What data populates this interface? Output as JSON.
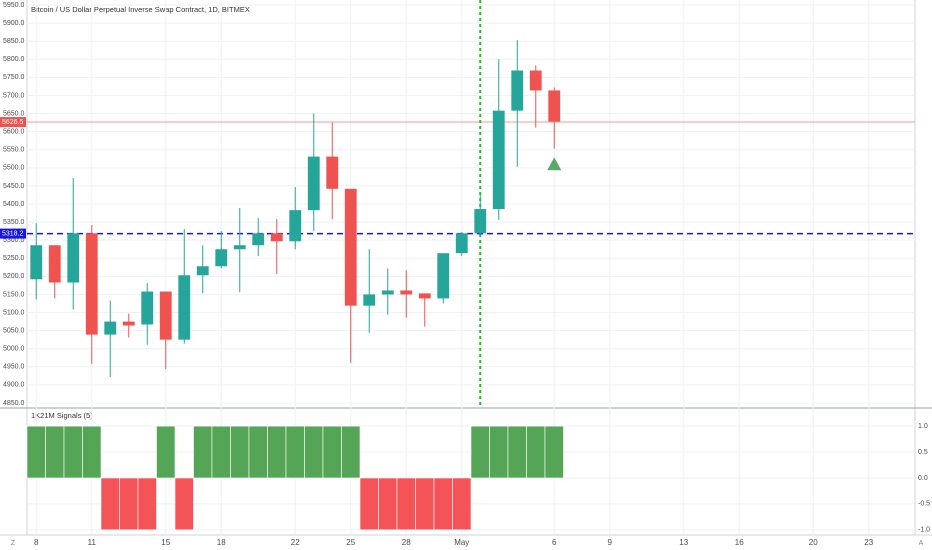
{
  "chart_data": [
    {
      "type": "candlestick",
      "title": "Bitcoin / US Dollar Perpetual Inverse Swap Contract, 1D, BITMEX",
      "open": [
        5192,
        5286,
        5183,
        5319,
        5039,
        5075,
        5067,
        5158,
        5025,
        5203,
        5228,
        5275,
        5286,
        5319,
        5297,
        5383,
        5531,
        5442,
        5119,
        5150,
        5161,
        5153,
        5139,
        5264,
        5319,
        5386,
        5658,
        5769,
        5714
      ],
      "high": [
        5347,
        5286,
        5472,
        5342,
        5133,
        5097,
        5181,
        5158,
        5331,
        5286,
        5325,
        5389,
        5361,
        5358,
        5447,
        5650,
        5625,
        5442,
        5275,
        5222,
        5217,
        5153,
        5264,
        5322,
        5425,
        5800,
        5853,
        5783,
        5722
      ],
      "low": [
        5136,
        5139,
        5108,
        4958,
        4922,
        5031,
        5011,
        4944,
        5014,
        5153,
        5222,
        5156,
        5256,
        5206,
        5275,
        5325,
        5358,
        4961,
        5044,
        5094,
        5086,
        5061,
        5125,
        5256,
        5308,
        5356,
        5503,
        5611,
        5553
      ],
      "close": [
        5286,
        5183,
        5319,
        5039,
        5075,
        5064,
        5158,
        5025,
        5203,
        5228,
        5275,
        5286,
        5319,
        5297,
        5383,
        5531,
        5442,
        5119,
        5150,
        5161,
        5150,
        5139,
        5264,
        5319,
        5386,
        5658,
        5769,
        5714,
        5628
      ],
      "up_color": "#26a69a",
      "down_color": "#ef5350",
      "xlim": [
        -0.5,
        47.5
      ],
      "xticks": [
        {
          "value": 0,
          "label": "8"
        },
        {
          "value": 3,
          "label": "11"
        },
        {
          "value": 7,
          "label": "15"
        },
        {
          "value": 10,
          "label": "18"
        },
        {
          "value": 14,
          "label": "22"
        },
        {
          "value": 17,
          "label": "25"
        },
        {
          "value": 20,
          "label": "28"
        },
        {
          "value": 23,
          "label": "May"
        },
        {
          "value": 28,
          "label": "6"
        },
        {
          "value": 31,
          "label": "9"
        },
        {
          "value": 35,
          "label": "13"
        },
        {
          "value": 38,
          "label": "16"
        },
        {
          "value": 42,
          "label": "20"
        },
        {
          "value": 45,
          "label": "23"
        }
      ],
      "ylim": [
        4836.1,
        5963.9
      ],
      "yticks": [
        {
          "value": 4850,
          "label": "4850.0"
        },
        {
          "value": 4900,
          "label": "4900.0"
        },
        {
          "value": 4950,
          "label": "4950.0"
        },
        {
          "value": 5000,
          "label": "5000.0"
        },
        {
          "value": 5050,
          "label": "5050.0"
        },
        {
          "value": 5100,
          "label": "5100.0"
        },
        {
          "value": 5150,
          "label": "5150.0"
        },
        {
          "value": 5200,
          "label": "5200.0"
        },
        {
          "value": 5250,
          "label": "5250.0"
        },
        {
          "value": 5300,
          "label": "5300.0"
        },
        {
          "value": 5350,
          "label": "5350.0"
        },
        {
          "value": 5400,
          "label": "5400.0"
        },
        {
          "value": 5450,
          "label": "5450.0"
        },
        {
          "value": 5500,
          "label": "5500.0"
        },
        {
          "value": 5550,
          "label": "5550.0"
        },
        {
          "value": 5600,
          "label": "5600.0"
        },
        {
          "value": 5650,
          "label": "5650.0"
        },
        {
          "value": 5700,
          "label": "5700.0"
        },
        {
          "value": 5750,
          "label": "5750.0"
        },
        {
          "value": 5800,
          "label": "5800.0"
        },
        {
          "value": 5850,
          "label": "5850.0"
        },
        {
          "value": 5900,
          "label": "5900.0"
        },
        {
          "value": 5950,
          "label": "5950.0"
        }
      ],
      "last_price": {
        "value": 5626.5,
        "color": "#ef5350"
      },
      "level_line": {
        "value": 5318.2,
        "color": "#1515e6"
      },
      "vline": {
        "x": 24,
        "color": "#1fbf1f"
      },
      "markers": [
        {
          "x": 28,
          "value": 5510,
          "color": "#5aa86a"
        }
      ],
      "grid": true
    },
    {
      "type": "bar",
      "title": "1K21M Signals (5)",
      "values": [
        1,
        1,
        1,
        1,
        -1,
        -1,
        -1,
        1,
        -1,
        1,
        1,
        1,
        1,
        1,
        1,
        1,
        1,
        1,
        -1,
        -1,
        -1,
        -1,
        -1,
        -1,
        1,
        1,
        1,
        1,
        1
      ],
      "pos_color": "#55a557",
      "neg_color": "#f45457",
      "ylim": [
        -1.1,
        1.35
      ],
      "yticks": [
        {
          "value": 1,
          "label": "1.0"
        },
        {
          "value": 0.5,
          "label": "0.5"
        },
        {
          "value": 0,
          "label": "0.0"
        },
        {
          "value": -0.5,
          "label": "-0.5"
        },
        {
          "value": -1,
          "label": "-1.0"
        }
      ]
    }
  ],
  "controls": {
    "left": "Z",
    "right": "A"
  }
}
